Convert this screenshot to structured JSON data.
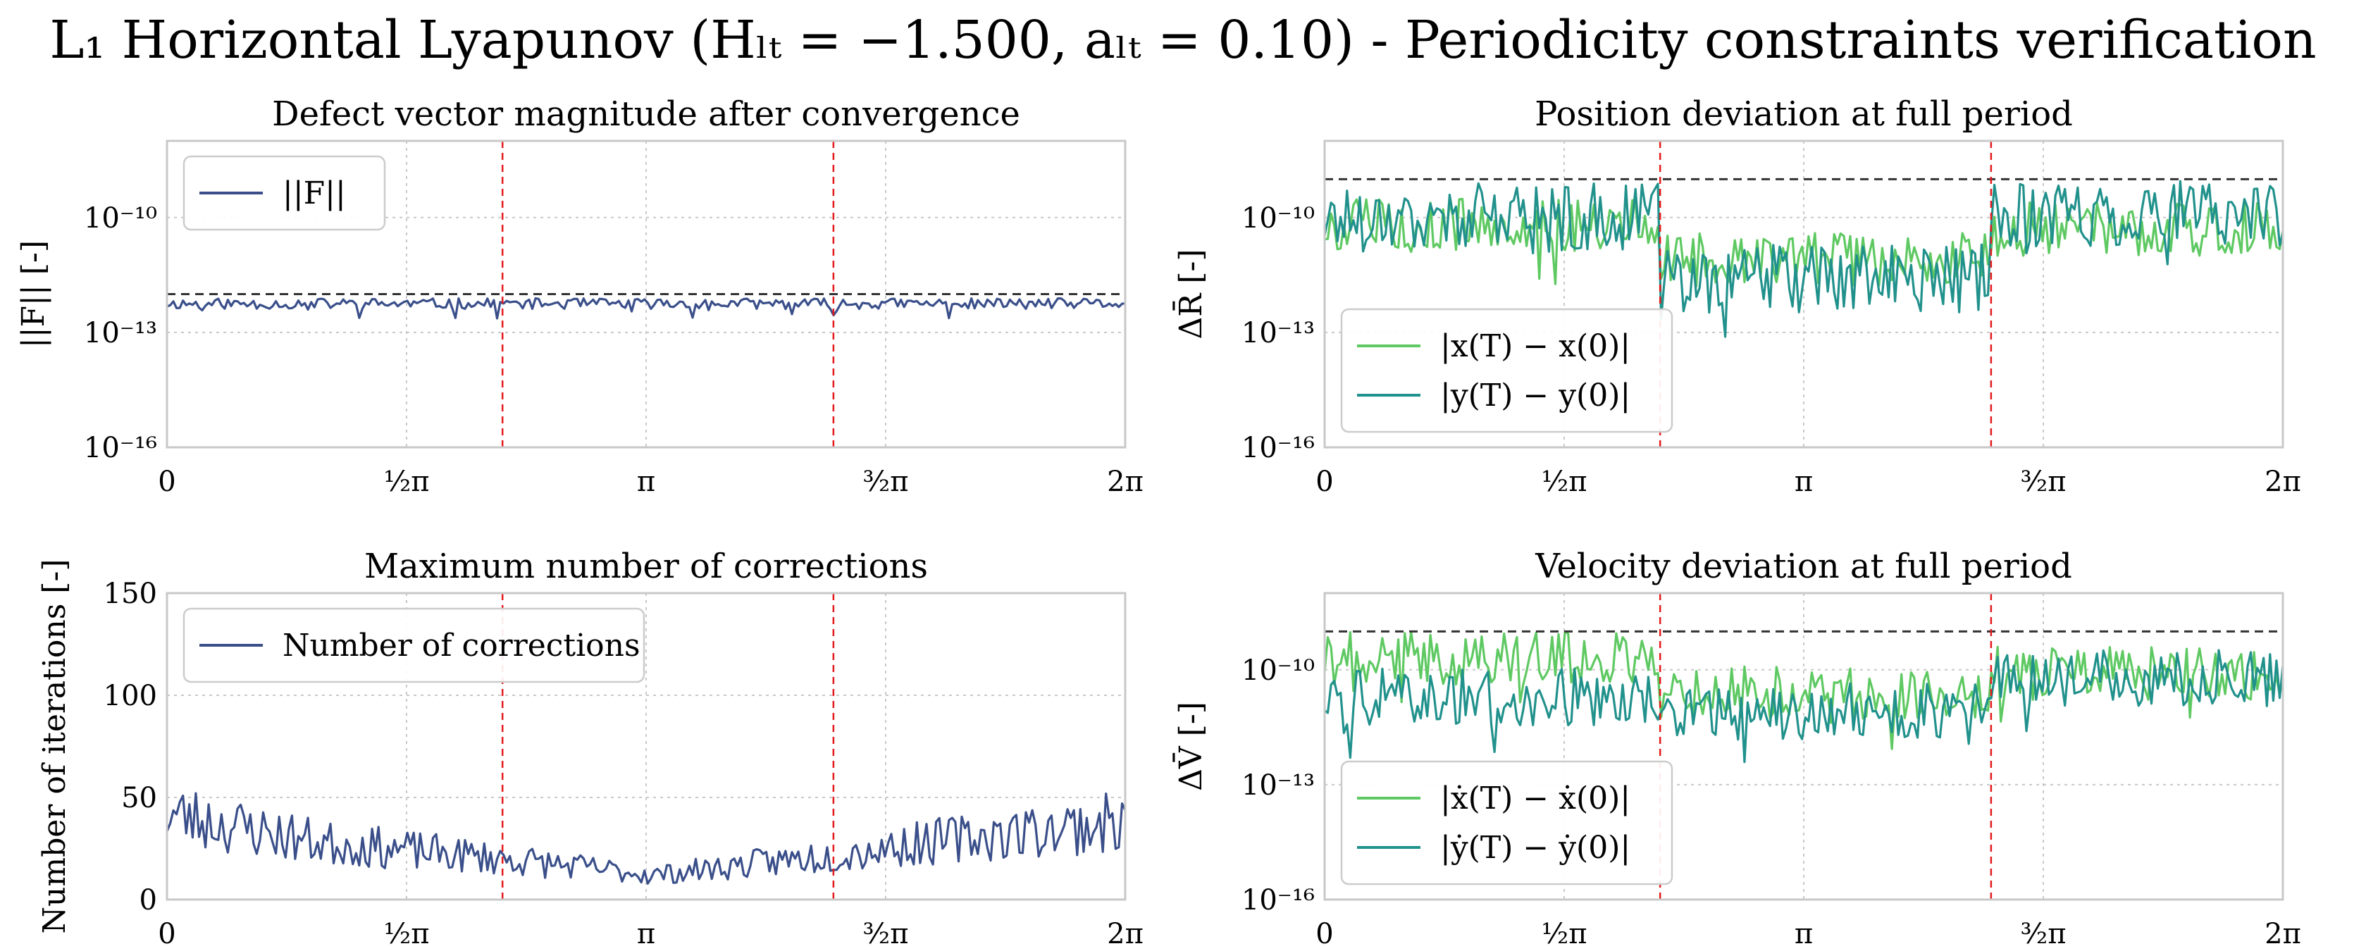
{
  "title": "L₁ Horizontal Lyapunov (Hₗₜ = −1.500, aₗₜ = 0.10) - Periodicity constraints verification",
  "colors": {
    "navy": "#3a4f8a",
    "light_green": "#5ec962",
    "teal": "#21918c",
    "red_dashed": "#e41a1c",
    "black_dashed": "#333333",
    "grid": "#c8c8c8",
    "frame": "#c8c8c8"
  },
  "chart_data": [
    {
      "id": "defect",
      "type": "line",
      "title": "Defect vector magnitude after convergence",
      "ylabel": "||F|| [-]",
      "xlabel": "",
      "yscale": "log",
      "ylim_exp": [
        -16,
        -8
      ],
      "yticks": [
        {
          "exp": -10,
          "label": "10⁻¹⁰"
        },
        {
          "exp": -13,
          "label": "10⁻¹³"
        },
        {
          "exp": -16,
          "label": "10⁻¹⁶"
        }
      ],
      "xlim": [
        0,
        6.2832
      ],
      "xticks": [
        {
          "v": 0,
          "label": "0"
        },
        {
          "v": 1.5708,
          "label": "½π"
        },
        {
          "v": 3.1416,
          "label": "π"
        },
        {
          "v": 4.7124,
          "label": "³⁄₂π"
        },
        {
          "v": 6.2832,
          "label": "2π"
        }
      ],
      "grid": true,
      "legend_loc": "top-left",
      "threshold_exp": -12,
      "vlines": [
        2.2,
        4.37
      ],
      "series": [
        {
          "name": "||F||",
          "color": "#3a4f8a",
          "kind": "noise_log",
          "n": 300,
          "base": -12.25,
          "amp": 0.14,
          "seed": 11
        }
      ]
    },
    {
      "id": "position",
      "type": "line",
      "title": "Position deviation at full period",
      "ylabel": "ΔR̄ [-]",
      "xlabel": "",
      "yscale": "log",
      "ylim_exp": [
        -16,
        -8
      ],
      "yticks": [
        {
          "exp": -10,
          "label": "10⁻¹⁰"
        },
        {
          "exp": -13,
          "label": "10⁻¹³"
        },
        {
          "exp": -16,
          "label": "10⁻¹⁶"
        }
      ],
      "xlim": [
        0,
        6.2832
      ],
      "xticks": [
        {
          "v": 0,
          "label": "0"
        },
        {
          "v": 1.5708,
          "label": "½π"
        },
        {
          "v": 3.1416,
          "label": "π"
        },
        {
          "v": 4.7124,
          "label": "³⁄₂π"
        },
        {
          "v": 6.2832,
          "label": "2π"
        }
      ],
      "grid": true,
      "legend_loc": "bottom-left",
      "threshold_exp": -9,
      "vlines": [
        2.2,
        4.37
      ],
      "series": [
        {
          "name": "|x(T) − x(0)|",
          "color": "#5ec962",
          "kind": "noise_log",
          "n": 300,
          "segments": [
            [
              0,
              2.2,
              -10.2
            ],
            [
              2.2,
              4.37,
              -11.1
            ],
            [
              4.37,
              6.2832,
              -10.3
            ]
          ],
          "amp": 0.7,
          "seed": 5
        },
        {
          "name": "|y(T) − y(0)|",
          "color": "#21918c",
          "kind": "noise_log",
          "n": 300,
          "segments": [
            [
              0,
              2.2,
              -10.0
            ],
            [
              2.2,
              4.37,
              -11.6
            ],
            [
              4.37,
              6.2832,
              -9.9
            ]
          ],
          "amp": 0.9,
          "seed": 17
        }
      ]
    },
    {
      "id": "corrections",
      "type": "line",
      "title": "Maximum number of corrections",
      "ylabel": "Number of iterations [-]",
      "xlabel": "",
      "yscale": "linear",
      "ylim": [
        0,
        150
      ],
      "yticks": [
        {
          "v": 0,
          "label": "0"
        },
        {
          "v": 50,
          "label": "50"
        },
        {
          "v": 100,
          "label": "100"
        },
        {
          "v": 150,
          "label": "150"
        }
      ],
      "xlim": [
        0,
        6.2832
      ],
      "xticks": [
        {
          "v": 0,
          "label": "0"
        },
        {
          "v": 1.5708,
          "label": "½π"
        },
        {
          "v": 3.1416,
          "label": "π"
        },
        {
          "v": 4.7124,
          "label": "³⁄₂π"
        },
        {
          "v": 6.2832,
          "label": "2π"
        }
      ],
      "grid": true,
      "legend_loc": "top-left",
      "vlines": [
        2.2,
        4.37
      ],
      "series": [
        {
          "name": "Number of corrections",
          "color": "#3a4f8a",
          "kind": "noise_lin",
          "n": 300,
          "profile": [
            [
              0,
              42
            ],
            [
              1.0,
              28
            ],
            [
              2.2,
              20
            ],
            [
              3.2,
              12
            ],
            [
              4.37,
              22
            ],
            [
              5.2,
              30
            ],
            [
              6.2832,
              38
            ]
          ],
          "amp": 10,
          "seed": 23
        }
      ]
    },
    {
      "id": "velocity",
      "type": "line",
      "title": "Velocity deviation at full period",
      "ylabel": "ΔV̄ [-]",
      "xlabel": "",
      "yscale": "log",
      "ylim_exp": [
        -16,
        -8
      ],
      "yticks": [
        {
          "exp": -10,
          "label": "10⁻¹⁰"
        },
        {
          "exp": -13,
          "label": "10⁻¹³"
        },
        {
          "exp": -16,
          "label": "10⁻¹⁶"
        }
      ],
      "xlim": [
        0,
        6.2832
      ],
      "xticks": [
        {
          "v": 0,
          "label": "0"
        },
        {
          "v": 1.5708,
          "label": "½π"
        },
        {
          "v": 3.1416,
          "label": "π"
        },
        {
          "v": 4.7124,
          "label": "³⁄₂π"
        },
        {
          "v": 6.2832,
          "label": "2π"
        }
      ],
      "grid": true,
      "legend_loc": "bottom-left",
      "threshold_exp": -9,
      "vlines": [
        2.2,
        4.37
      ],
      "series": [
        {
          "name": "|ẋ(T) − ẋ(0)|",
          "color": "#5ec962",
          "kind": "noise_log",
          "n": 300,
          "segments": [
            [
              0,
              2.2,
              -9.7
            ],
            [
              2.2,
              4.37,
              -10.6
            ],
            [
              4.37,
              6.2832,
              -10.1
            ]
          ],
          "amp": 0.7,
          "seed": 41
        },
        {
          "name": "|ẏ(T) − ẏ(0)|",
          "color": "#21918c",
          "kind": "noise_log",
          "n": 300,
          "segments": [
            [
              0,
              2.2,
              -10.7
            ],
            [
              2.2,
              4.37,
              -11.1
            ],
            [
              4.37,
              6.2832,
              -10.2
            ]
          ],
          "amp": 0.75,
          "seed": 59
        }
      ]
    }
  ]
}
